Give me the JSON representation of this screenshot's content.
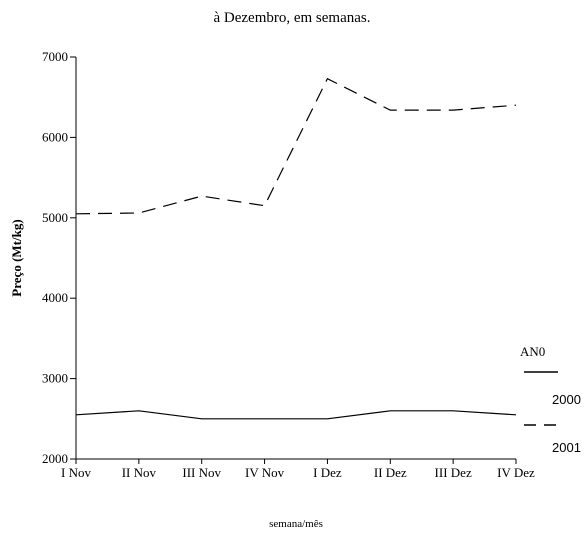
{
  "chart_data": {
    "type": "line",
    "title": "à Dezembro, em semanas.",
    "xlabel": "semana/mês",
    "ylabel": "Preço (Mt/kg)",
    "categories": [
      "I Nov",
      "II Nov",
      "III Nov",
      "IV Nov",
      "I Dez",
      "II Dez",
      "III Dez",
      "IV Dez"
    ],
    "yticks": [
      2000,
      3000,
      4000,
      5000,
      6000,
      7000
    ],
    "ylim": [
      2000,
      7000
    ],
    "legend_title": "AN0",
    "legend_position": "right",
    "series": [
      {
        "name": "2000",
        "line_style": "solid",
        "values": [
          2550,
          2600,
          2500,
          2500,
          2500,
          2600,
          2600,
          2550
        ]
      },
      {
        "name": "2001",
        "line_style": "dashed",
        "values": [
          5050,
          5060,
          5270,
          5150,
          6730,
          6340,
          6340,
          6400
        ]
      }
    ]
  }
}
